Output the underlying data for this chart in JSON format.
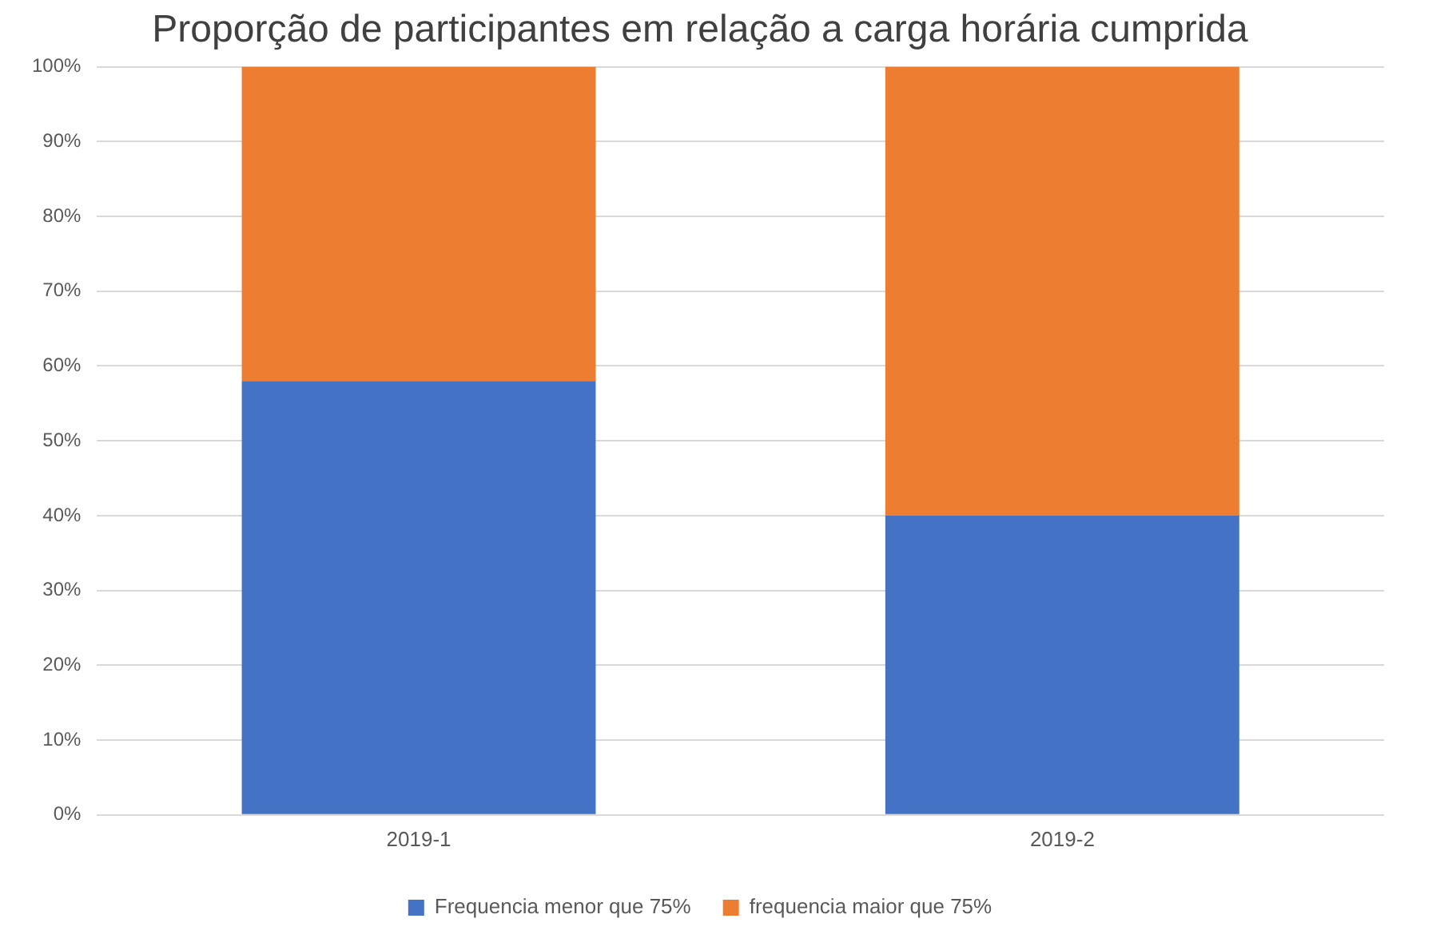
{
  "chart_data": {
    "type": "bar",
    "title": "Proporção de participantes em relação a carga horária cumprida",
    "categories": [
      "2019-1",
      "2019-2"
    ],
    "stacked": true,
    "series": [
      {
        "name": "Frequencia menor que 75%",
        "color": "#4472c4",
        "values": [
          58,
          40
        ]
      },
      {
        "name": "frequencia maior que 75%",
        "color": "#ed7d31",
        "values": [
          42,
          60
        ]
      }
    ],
    "ylim": [
      0,
      100
    ],
    "yticks": [
      {
        "value": 0,
        "label": "0%"
      },
      {
        "value": 10,
        "label": "10%"
      },
      {
        "value": 20,
        "label": "20%"
      },
      {
        "value": 30,
        "label": "30%"
      },
      {
        "value": 40,
        "label": "40%"
      },
      {
        "value": 50,
        "label": "50%"
      },
      {
        "value": 60,
        "label": "60%"
      },
      {
        "value": 70,
        "label": "70%"
      },
      {
        "value": 80,
        "label": "80%"
      },
      {
        "value": 90,
        "label": "90%"
      },
      {
        "value": 100,
        "label": "100%"
      }
    ],
    "grid": "y",
    "legend": "bottom"
  }
}
